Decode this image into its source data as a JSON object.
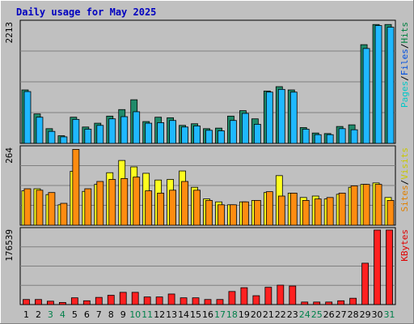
{
  "chart_data": {
    "type": "bar",
    "title": "Daily usage for May 2025",
    "days": [
      {
        "label": "1",
        "weekend": false
      },
      {
        "label": "2",
        "weekend": false
      },
      {
        "label": "3",
        "weekend": true
      },
      {
        "label": "4",
        "weekend": true
      },
      {
        "label": "5",
        "weekend": false
      },
      {
        "label": "6",
        "weekend": false
      },
      {
        "label": "7",
        "weekend": false
      },
      {
        "label": "8",
        "weekend": false
      },
      {
        "label": "9",
        "weekend": false
      },
      {
        "label": "10",
        "weekend": true
      },
      {
        "label": "11",
        "weekend": true
      },
      {
        "label": "12",
        "weekend": false
      },
      {
        "label": "13",
        "weekend": false
      },
      {
        "label": "14",
        "weekend": false
      },
      {
        "label": "15",
        "weekend": false
      },
      {
        "label": "16",
        "weekend": false
      },
      {
        "label": "17",
        "weekend": true
      },
      {
        "label": "18",
        "weekend": true
      },
      {
        "label": "19",
        "weekend": false
      },
      {
        "label": "20",
        "weekend": false
      },
      {
        "label": "21",
        "weekend": false
      },
      {
        "label": "22",
        "weekend": false
      },
      {
        "label": "23",
        "weekend": false
      },
      {
        "label": "24",
        "weekend": true
      },
      {
        "label": "25",
        "weekend": true
      },
      {
        "label": "26",
        "weekend": false
      },
      {
        "label": "27",
        "weekend": false
      },
      {
        "label": "28",
        "weekend": false
      },
      {
        "label": "29",
        "weekend": false
      },
      {
        "label": "30",
        "weekend": false
      },
      {
        "label": "31",
        "weekend": true
      }
    ],
    "panels": [
      {
        "id": "hits-files-pages",
        "ymax_label": "2213",
        "ymax": 2213,
        "legend": [
          {
            "text": "Pages",
            "color": "#00c8c8"
          },
          {
            "text": "/",
            "color": "#000000"
          },
          {
            "text": "Files",
            "color": "#0050e0"
          },
          {
            "text": "/",
            "color": "#000000"
          },
          {
            "text": "Hits",
            "color": "#008040"
          }
        ],
        "series": [
          {
            "name": "Hits",
            "color": "#1f8a6a",
            "values": [
              980,
              540,
              270,
              140,
              480,
              300,
              370,
              500,
              620,
              800,
              400,
              480,
              470,
              330,
              360,
              270,
              280,
              500,
              600,
              450,
              960,
              1040,
              980,
              290,
              190,
              180,
              310,
              340,
              1810,
              2180,
              2180
            ]
          },
          {
            "name": "Files",
            "color": "#1fb8ff",
            "values": [
              950,
              480,
              220,
              120,
              440,
              260,
              330,
              450,
              490,
              580,
              370,
              380,
              420,
              300,
              320,
              240,
              230,
              420,
              550,
              350,
              940,
              990,
              940,
              260,
              160,
              160,
              270,
              250,
              1740,
              2160,
              2130
            ]
          }
        ]
      },
      {
        "id": "visits-sites",
        "ymax_label": "264",
        "ymax": 264,
        "legend": [
          {
            "text": "Sites",
            "color": "#e08000"
          },
          {
            "text": "/",
            "color": "#000000"
          },
          {
            "text": "Visits",
            "color": "#c8c800"
          }
        ],
        "series": [
          {
            "name": "Visits",
            "color": "#ffff1f",
            "values": [
              118,
              125,
              105,
              70,
              185,
              116,
              140,
              180,
              222,
              200,
              178,
              155,
              157,
              186,
              130,
              90,
              80,
              70,
              80,
              85,
              112,
              170,
              110,
              95,
              100,
              90,
              106,
              130,
              140,
              145,
              95
            ]
          },
          {
            "name": "Sites",
            "color": "#ff8c10",
            "values": [
              125,
              120,
              112,
              75,
              260,
              125,
              150,
              157,
              160,
              165,
              118,
              110,
              120,
              150,
              120,
              85,
              70,
              70,
              80,
              85,
              115,
              100,
              110,
              85,
              90,
              95,
              110,
              135,
              140,
              140,
              85
            ]
          }
        ]
      },
      {
        "id": "kbytes",
        "ymax_label": "176539",
        "ymax": 176539,
        "legend": [
          {
            "text": "KBytes",
            "color": "#e00000"
          }
        ],
        "series": [
          {
            "name": "KBytes",
            "color": "#ff2020",
            "values": [
              12000,
              12000,
              8000,
              5000,
              16000,
              9000,
              17000,
              22000,
              29000,
              29000,
              18000,
              18000,
              25000,
              16000,
              16000,
              12000,
              12000,
              31000,
              40000,
              21000,
              41000,
              46000,
              44000,
              6000,
              6000,
              6000,
              9000,
              15000,
              98000,
              176539,
              176539
            ]
          }
        ]
      }
    ]
  }
}
